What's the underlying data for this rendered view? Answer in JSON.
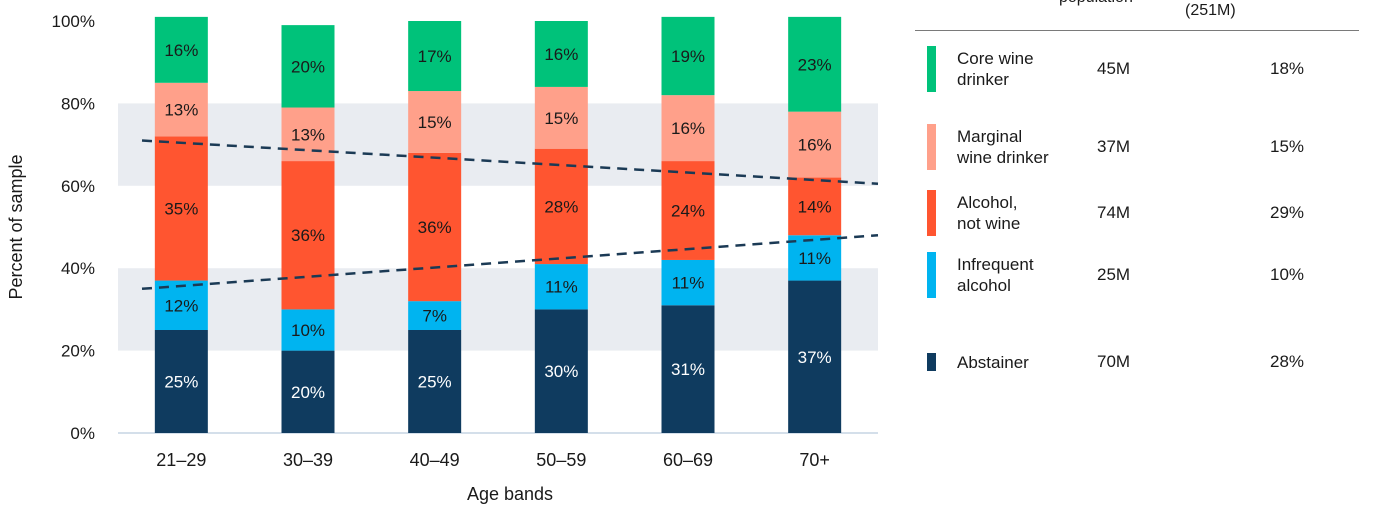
{
  "chart_data": {
    "type": "bar",
    "stacked": true,
    "orientation": "vertical",
    "xlabel": "Age bands",
    "ylabel": "Percent of sample",
    "ylim": [
      0,
      100
    ],
    "yticks": [
      "0%",
      "20%",
      "40%",
      "60%",
      "80%",
      "100%"
    ],
    "categories": [
      "21–29",
      "30–39",
      "40–49",
      "50–59",
      "60–69",
      "70+"
    ],
    "series": [
      {
        "name": "Abstainer",
        "color": "#0f3b5f",
        "label_color": "#ffffff",
        "values": [
          25,
          20,
          25,
          30,
          31,
          37
        ],
        "labels": [
          "25%",
          "20%",
          "25%",
          "30%",
          "31%",
          "37%"
        ]
      },
      {
        "name": "Infrequent alcohol",
        "color": "#00b4f0",
        "label_color": "#1a1a1a",
        "values": [
          12,
          10,
          7,
          11,
          11,
          11
        ],
        "labels": [
          "12%",
          "10%",
          "7%",
          "11%",
          "11%",
          "11%"
        ]
      },
      {
        "name": "Alcohol, not wine",
        "color": "#ff5530",
        "label_color": "#1a1a1a",
        "values": [
          35,
          36,
          36,
          28,
          24,
          14
        ],
        "labels": [
          "35%",
          "36%",
          "36%",
          "28%",
          "24%",
          "14%"
        ]
      },
      {
        "name": "Marginal wine drinker",
        "color": "#ffa08a",
        "label_color": "#1a1a1a",
        "values": [
          13,
          13,
          15,
          15,
          16,
          16
        ],
        "labels": [
          "13%",
          "13%",
          "15%",
          "15%",
          "16%",
          "16%"
        ]
      },
      {
        "name": "Core wine drinker",
        "color": "#00c27a",
        "label_color": "#1a1a1a",
        "values": [
          16,
          20,
          17,
          16,
          19,
          23
        ],
        "labels": [
          "16%",
          "20%",
          "17%",
          "16%",
          "19%",
          "23%"
        ]
      }
    ],
    "trend_lines": [
      {
        "style": "dashed",
        "color": "#1b3a55",
        "y_start": 71,
        "y_end": 60.5
      },
      {
        "style": "dashed",
        "color": "#1b3a55",
        "y_start": 35,
        "y_end": 48
      }
    ],
    "background_bands": [
      [
        20,
        40
      ],
      [
        60,
        80
      ]
    ],
    "band_color": "#e9ecf1",
    "legend": {
      "placement": "right",
      "header_population": "population",
      "header_share": "(251M)",
      "entries": [
        {
          "label_lines": [
            "Core wine",
            "drinker"
          ],
          "population": "45M",
          "share": "18%",
          "color": "#00c27a"
        },
        {
          "label_lines": [
            "Marginal",
            "wine drinker"
          ],
          "population": "37M",
          "share": "15%",
          "color": "#ffa08a"
        },
        {
          "label_lines": [
            "Alcohol,",
            "not wine"
          ],
          "population": "74M",
          "share": "29%",
          "color": "#ff5530"
        },
        {
          "label_lines": [
            "Infrequent",
            "alcohol"
          ],
          "population": "25M",
          "share": "10%",
          "color": "#00b4f0"
        },
        {
          "label_lines": [
            "Abstainer"
          ],
          "population": "70M",
          "share": "28%",
          "color": "#0f3b5f"
        }
      ]
    }
  }
}
